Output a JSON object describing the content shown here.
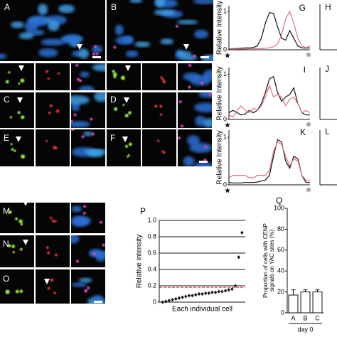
{
  "panel_labels": [
    "A",
    "B",
    "C",
    "D",
    "E",
    "F",
    "M",
    "N",
    "O",
    "H",
    "J",
    "L"
  ],
  "chart_data": [
    {
      "type": "line",
      "title": "G",
      "ylabel": "Relative Intensity",
      "x": [
        0,
        1,
        2,
        3,
        4,
        5,
        6,
        7,
        8,
        9,
        10,
        11,
        12,
        13,
        14,
        15,
        16,
        17,
        18,
        19,
        20
      ],
      "xlim": [
        0,
        20
      ],
      "ylim": [
        0,
        1.15
      ],
      "yticks": [
        0,
        1
      ],
      "series": [
        {
          "color": "#111111",
          "values": [
            0.02,
            0.03,
            0.03,
            0.04,
            0.05,
            0.05,
            0.06,
            0.1,
            0.3,
            0.7,
            0.97,
            0.95,
            0.6,
            0.3,
            0.25,
            0.5,
            0.3,
            0.1,
            0.05,
            0.04,
            0.05
          ]
        },
        {
          "color": "#e0707a",
          "values": [
            0.02,
            0.02,
            0.02,
            0.02,
            0.02,
            0.03,
            0.03,
            0.03,
            0.03,
            0.04,
            0.05,
            0.08,
            0.15,
            0.4,
            0.8,
            1.0,
            0.7,
            0.3,
            0.1,
            0.05,
            0.1
          ]
        }
      ]
    },
    {
      "type": "line",
      "title": "I",
      "ylabel": "Relative Intensity",
      "x": [
        0,
        1,
        2,
        3,
        4,
        5,
        6,
        7,
        8,
        9,
        10,
        11,
        12,
        13,
        14,
        15,
        16,
        17,
        18,
        19,
        20
      ],
      "xlim": [
        0,
        20
      ],
      "ylim": [
        0,
        1.15
      ],
      "yticks": [
        0,
        1
      ],
      "series": [
        {
          "color": "#111111",
          "values": [
            0.15,
            0.2,
            0.15,
            0.1,
            0.12,
            0.2,
            0.15,
            0.2,
            0.35,
            0.6,
            0.9,
            0.95,
            0.6,
            0.4,
            0.5,
            0.55,
            0.7,
            0.35,
            0.15,
            0.1,
            0.1
          ]
        },
        {
          "color": "#e0707a",
          "values": [
            0.1,
            0.05,
            0.2,
            0.3,
            0.2,
            0.15,
            0.25,
            0.2,
            0.3,
            0.5,
            0.75,
            0.5,
            0.55,
            0.5,
            0.3,
            0.45,
            0.5,
            0.35,
            0.15,
            0.2,
            0.15
          ]
        }
      ]
    },
    {
      "type": "line",
      "title": "K",
      "ylabel": "Relative Intensity",
      "x": [
        0,
        1,
        2,
        3,
        4,
        5,
        6,
        7,
        8,
        9,
        10,
        11,
        12,
        13,
        14,
        15,
        16,
        17,
        18,
        19,
        20
      ],
      "xlim": [
        0,
        20
      ],
      "ylim": [
        0,
        1.15
      ],
      "yticks": [
        0,
        1
      ],
      "series": [
        {
          "color": "#111111",
          "values": [
            0.05,
            0.04,
            0.04,
            0.04,
            0.05,
            0.05,
            0.05,
            0.06,
            0.08,
            0.1,
            0.2,
            0.6,
            0.95,
            0.9,
            0.5,
            0.35,
            0.6,
            0.55,
            0.2,
            0.05,
            0.05
          ]
        },
        {
          "color": "#e0707a",
          "values": [
            0.15,
            0.2,
            0.2,
            0.2,
            0.2,
            0.15,
            0.15,
            0.2,
            0.2,
            0.2,
            0.3,
            0.7,
            0.9,
            0.85,
            0.6,
            0.4,
            0.55,
            0.5,
            0.2,
            0.1,
            0.1
          ]
        }
      ]
    },
    {
      "type": "scatter",
      "title": "P",
      "ylabel": "Relative intensity",
      "xlabel": "Each individual cell",
      "x": [
        1,
        2,
        3,
        4,
        5,
        6,
        7,
        8,
        9,
        10,
        11,
        12,
        13,
        14,
        15,
        16,
        17,
        18,
        19,
        20,
        21,
        22,
        23,
        24,
        25
      ],
      "xlim": [
        0,
        26
      ],
      "values": [
        0.0,
        0.01,
        0.02,
        0.03,
        0.04,
        0.05,
        0.06,
        0.07,
        0.08,
        0.08,
        0.09,
        0.1,
        0.1,
        0.11,
        0.11,
        0.12,
        0.12,
        0.13,
        0.13,
        0.14,
        0.15,
        0.16,
        0.2,
        0.55,
        0.85
      ],
      "color": "#111111",
      "ylim": [
        0,
        1.0
      ],
      "yticks": [
        0,
        0.2,
        0.4,
        0.6,
        0.8,
        {
          "value": 1.0,
          "label": "1.0"
        }
      ],
      "grid": true,
      "reference_lines": [
        {
          "value": 0.18,
          "color": "#e03040"
        }
      ]
    },
    {
      "type": "bar",
      "title": "Q",
      "ylabel": [
        "Proportion of cells with CENP",
        "signals on YAC sites (%)"
      ],
      "xlabel": "day 0",
      "categories": [
        "A",
        "B",
        "C"
      ],
      "values": [
        17,
        20,
        20
      ],
      "errors": [
        5,
        2,
        2
      ],
      "color": "#ffffff",
      "ylim": [
        0,
        100
      ],
      "yticks": [
        0,
        20,
        40,
        60,
        80,
        100
      ]
    }
  ]
}
